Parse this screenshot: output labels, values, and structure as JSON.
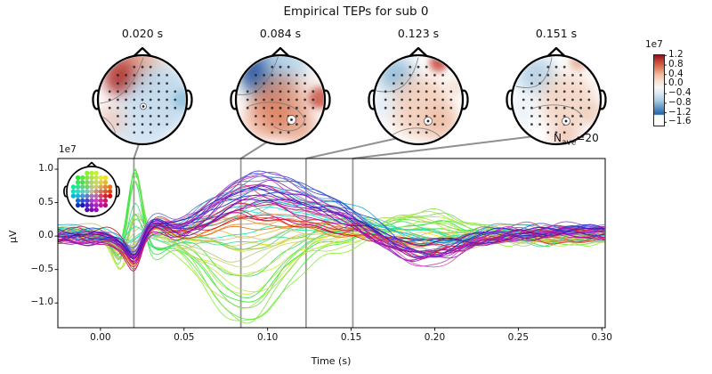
{
  "chart_data": {
    "type": "line",
    "subtype": "eeg-butterfly-with-topomaps",
    "title": "Empirical TEPs for sub 0",
    "xlabel": "Time (s)",
    "ylabel": "µV",
    "y_offset_label": "1e7",
    "n_ave": {
      "prefix": "N",
      "sub": "ave",
      "rest": "=20"
    },
    "xlim": [
      -0.0255,
      0.302
    ],
    "ylim": [
      -1.37,
      1.16
    ],
    "x_ticks": [
      0.0,
      0.05,
      0.1,
      0.15,
      0.2,
      0.25,
      0.3
    ],
    "x_tick_labels": [
      "0.00",
      "0.05",
      "0.10",
      "0.15",
      "0.20",
      "0.25",
      "0.30"
    ],
    "y_ticks": [
      1.0,
      0.5,
      0.0,
      -0.5,
      -1.0
    ],
    "y_tick_labels": [
      "1.0",
      "0.5",
      "0.0",
      "−0.5",
      "−1.0"
    ],
    "marked_times": [
      0.02,
      0.084,
      0.123,
      0.151
    ],
    "n_channels": 61,
    "legend": "none",
    "grid": false,
    "topomaps": [
      {
        "label": "0.020 s",
        "blobs": [
          {
            "x": -0.42,
            "y": 0.5,
            "r": 0.38,
            "c": "#8f1523",
            "a": 0.95
          },
          {
            "x": -0.3,
            "y": 0.62,
            "r": 0.55,
            "c": "#c94c3b",
            "a": 0.55
          },
          {
            "x": 0.15,
            "y": 0.85,
            "r": 0.4,
            "c": "#e8a285",
            "a": 0.5
          },
          {
            "x": 0.4,
            "y": 0.05,
            "r": 0.75,
            "c": "#b9d5e9",
            "a": 0.85
          },
          {
            "x": -0.05,
            "y": -0.55,
            "r": 0.7,
            "c": "#cadff0",
            "a": 0.8
          },
          {
            "x": -0.72,
            "y": -0.45,
            "r": 0.33,
            "c": "#f0bfae",
            "a": 0.7
          },
          {
            "x": 0.92,
            "y": 0.0,
            "r": 0.22,
            "c": "#8fc0dd",
            "a": 0.8
          }
        ],
        "ring": {
          "x": 0.02,
          "y": -0.15,
          "r": 0.07
        },
        "contours": [
          "M -0.95 -0.08 C -0.5 -0.02 -0.2 0.3 0.02 0.95",
          "M -0.6 -0.95 C -0.56 -0.6 -0.8 -0.42 -0.96 -0.35"
        ]
      },
      {
        "label": "0.084 s",
        "blobs": [
          {
            "x": -0.5,
            "y": 0.6,
            "r": 0.4,
            "c": "#14408f",
            "a": 0.95
          },
          {
            "x": -0.25,
            "y": 0.4,
            "r": 0.5,
            "c": "#4a7fbc",
            "a": 0.6
          },
          {
            "x": 0.15,
            "y": 0.8,
            "r": 0.5,
            "c": "#a9cce5",
            "a": 0.75
          },
          {
            "x": 0.0,
            "y": -0.1,
            "r": 0.65,
            "c": "#dd8260",
            "a": 0.7
          },
          {
            "x": -0.2,
            "y": -0.35,
            "r": 0.45,
            "c": "#d86f4d",
            "a": 0.6
          },
          {
            "x": 0.88,
            "y": 0.05,
            "r": 0.25,
            "c": "#c04030",
            "a": 0.8
          },
          {
            "x": 0.45,
            "y": -0.65,
            "r": 0.4,
            "c": "#e2906f",
            "a": 0.6
          },
          {
            "x": -0.55,
            "y": -0.55,
            "r": 0.35,
            "c": "#eeb49c",
            "a": 0.55
          },
          {
            "x": 0.6,
            "y": 0.35,
            "r": 0.3,
            "c": "#ecd0c2",
            "a": 0.4
          }
        ],
        "ring": {
          "x": 0.25,
          "y": -0.45,
          "r": 0.1
        },
        "contours": [
          "M -0.97 0.12 C -0.5 0.05 -0.25 0.4 -0.05 0.97",
          "M -0.72 -0.15 C -0.3 0.02 0.35 -0.02 0.55 -0.45 C 0.45 -0.75 0.1 -0.75 -0.15 -0.6"
        ]
      },
      {
        "label": "0.123 s",
        "blobs": [
          {
            "x": -0.5,
            "y": 0.55,
            "r": 0.42,
            "c": "#8ab6d8",
            "a": 0.85
          },
          {
            "x": 0.45,
            "y": 0.82,
            "r": 0.2,
            "c": "#bf3a2b",
            "a": 0.8
          },
          {
            "x": 0.05,
            "y": -0.15,
            "r": 0.7,
            "c": "#efc3ab",
            "a": 0.75
          },
          {
            "x": 0.55,
            "y": -0.55,
            "r": 0.4,
            "c": "#e9ad90",
            "a": 0.6
          },
          {
            "x": -0.8,
            "y": -0.15,
            "r": 0.3,
            "c": "#dceaf4",
            "a": 0.85
          },
          {
            "x": 0.85,
            "y": 0.3,
            "r": 0.2,
            "c": "#f0d5c8",
            "a": 0.6
          }
        ],
        "ring": {
          "x": 0.22,
          "y": -0.48,
          "r": 0.09
        },
        "contours": [
          "M -0.95 0.2 C -0.45 0.1 -0.15 0.35 0.0 0.95",
          "M -0.6 -0.8 C -0.2 -0.55 0.3 -0.6 0.5 -0.85"
        ]
      },
      {
        "label": "0.151 s",
        "blobs": [
          {
            "x": -0.45,
            "y": 0.55,
            "r": 0.45,
            "c": "#abcbe2",
            "a": 0.8
          },
          {
            "x": 0.5,
            "y": 0.85,
            "r": 0.2,
            "c": "#dd9070",
            "a": 0.65
          },
          {
            "x": 0.25,
            "y": -0.05,
            "r": 0.65,
            "c": "#f0c8b2",
            "a": 0.7
          },
          {
            "x": 0.2,
            "y": -0.85,
            "r": 0.3,
            "c": "#e3a084",
            "a": 0.55
          },
          {
            "x": -0.75,
            "y": -0.25,
            "r": 0.33,
            "c": "#e9f1f7",
            "a": 0.9
          },
          {
            "x": 0.8,
            "y": -0.3,
            "r": 0.25,
            "c": "#ecc9b8",
            "a": 0.6
          }
        ],
        "ring": {
          "x": 0.22,
          "y": -0.48,
          "r": 0.09
        },
        "contours": [
          "M -0.9 0.3 C -0.4 0.18 -0.2 0.4 -0.1 0.95",
          "M -0.55 -0.2 C -0.1 -0.05 0.45 -0.1 0.6 -0.4"
        ]
      }
    ],
    "colorbar": {
      "scale_label": "1e7",
      "vmax": 1.25,
      "vmin": -1.7,
      "tick_values": [
        1.2,
        0.8,
        0.4,
        0.0,
        -0.4,
        -0.8,
        -1.2,
        -1.6
      ],
      "tick_labels": [
        "1.2",
        "0.8",
        "0.4",
        "0.0",
        "−0.4",
        "−0.8",
        "−1.2",
        "−1.6"
      ],
      "gradient": [
        [
          0,
          "#8e0e26"
        ],
        [
          7,
          "#c0392e"
        ],
        [
          18,
          "#e07b5c"
        ],
        [
          28,
          "#f3bda2"
        ],
        [
          38,
          "#f8e4d8"
        ],
        [
          46,
          "#f7f7f6"
        ],
        [
          55,
          "#d8e7f1"
        ],
        [
          65,
          "#a5cbe3"
        ],
        [
          75,
          "#5a93c6"
        ],
        [
          84,
          "#2463aa"
        ],
        [
          85.5,
          "#ffffff"
        ],
        [
          100,
          "#ffffff"
        ]
      ]
    },
    "sensor_layout": {
      "step": 0.2,
      "radius": 0.85
    },
    "channel_color_map": {
      "hue_stops": [
        [
          -180,
          280
        ],
        [
          -135,
          225
        ],
        [
          -90,
          172
        ],
        [
          -45,
          120
        ],
        [
          0,
          80
        ],
        [
          45,
          55
        ],
        [
          90,
          15
        ],
        [
          135,
          -40
        ],
        [
          180,
          -80
        ]
      ],
      "sat_base": 25,
      "sat_range": 65,
      "light_base": 68,
      "light_radius": -22,
      "light_front": 12
    },
    "waveform_model": {
      "seed": 7,
      "dt": 0.0015,
      "fields": {
        "front": {
          "x": -0.15,
          "y": 0.62,
          "s": 0.28
        },
        "fl": {
          "x": -0.52,
          "y": 0.52,
          "s": 0.18
        },
        "post": {
          "x": 0.05,
          "y": -0.35,
          "s": 0.45
        },
        "lb": {
          "x": -0.5,
          "y": -0.2,
          "s": 0.3
        },
        "rt": {
          "x": 0.55,
          "y": -0.05,
          "s": 0.3
        }
      },
      "components": [
        {
          "t": 0.0205,
          "s": 0.0042,
          "w": {
            "fl": 1.25,
            "front": 0.55,
            "const": -0.38
          }
        },
        {
          "t": 0.012,
          "s": 0.0045,
          "w": {
            "front": -0.45,
            "const": -0.08
          }
        },
        {
          "t": 0.033,
          "s": 0.007,
          "w": {
            "fl": -0.5,
            "const": 0.15
          }
        },
        {
          "t": 0.085,
          "s": 0.021,
          "w": {
            "front": -1.15,
            "fl": -0.35,
            "post": 0.5,
            "lb": 0.3,
            "rt": 0.12
          }
        },
        {
          "t": 0.125,
          "s": 0.035,
          "w": {
            "post": 0.42,
            "lb": 0.32,
            "front": -0.22
          }
        },
        {
          "t": 0.192,
          "s": 0.022,
          "w": {
            "front": 0.4,
            "post": -0.5
          }
        },
        {
          "t": 0.265,
          "s": 0.035,
          "w": {
            "post": 0.1,
            "front": -0.12
          }
        }
      ],
      "noise": {
        "amps": [
          0.05,
          0.032,
          0.02
        ],
        "freqs": [
          11,
          23,
          41
        ],
        "slow_amp": 0.035,
        "drift": 0.14
      }
    }
  }
}
